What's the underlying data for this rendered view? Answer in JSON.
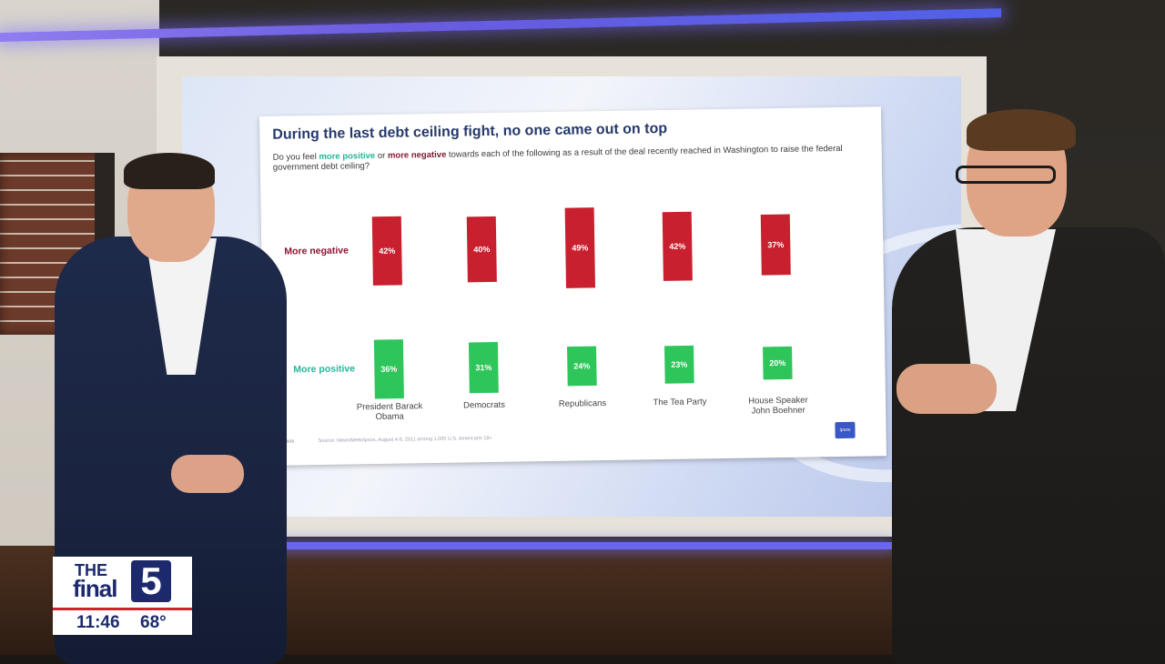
{
  "slide": {
    "title": "During the last debt ceiling fight, no one came out on top",
    "question_pre": "Do you feel ",
    "question_pos": "more positive",
    "question_or": " or ",
    "question_neg": "more negative",
    "question_post": " towards each of the following as a result of the deal recently reached in Washington to raise the federal government debt ceiling?",
    "row_label_negative": "More negative",
    "row_label_positive": "More positive",
    "source": "Source: NewsWeek/Ipsos, August 4-5, 2011 among 1,005 U.S. Americans 18+",
    "brand": "© Ipsos",
    "logo_text": "Ipsos"
  },
  "chart_data": {
    "type": "bar",
    "title": "During the last debt ceiling fight, no one came out on top",
    "categories": [
      "President Barack Obama",
      "Democrats",
      "Republicans",
      "The Tea Party",
      "House Speaker John Boehner"
    ],
    "series": [
      {
        "name": "More negative",
        "values": [
          42,
          40,
          49,
          42,
          37
        ],
        "labels": [
          "42%",
          "40%",
          "49%",
          "42%",
          "37%"
        ],
        "color": "#c8202e"
      },
      {
        "name": "More positive",
        "values": [
          36,
          31,
          24,
          23,
          20
        ],
        "labels": [
          "36%",
          "31%",
          "24%",
          "23%",
          "20%"
        ],
        "color": "#2ec55a"
      }
    ],
    "ylim": [
      0,
      50
    ]
  },
  "bug": {
    "the": "THE",
    "final": "final",
    "five": "5",
    "time": "11:46",
    "temp": "68°"
  },
  "colors": {
    "negative": "#c8202e",
    "positive": "#2ec55a",
    "title": "#263a6b",
    "brand_navy": "#1c2a6d",
    "brand_red": "#d3202a"
  }
}
